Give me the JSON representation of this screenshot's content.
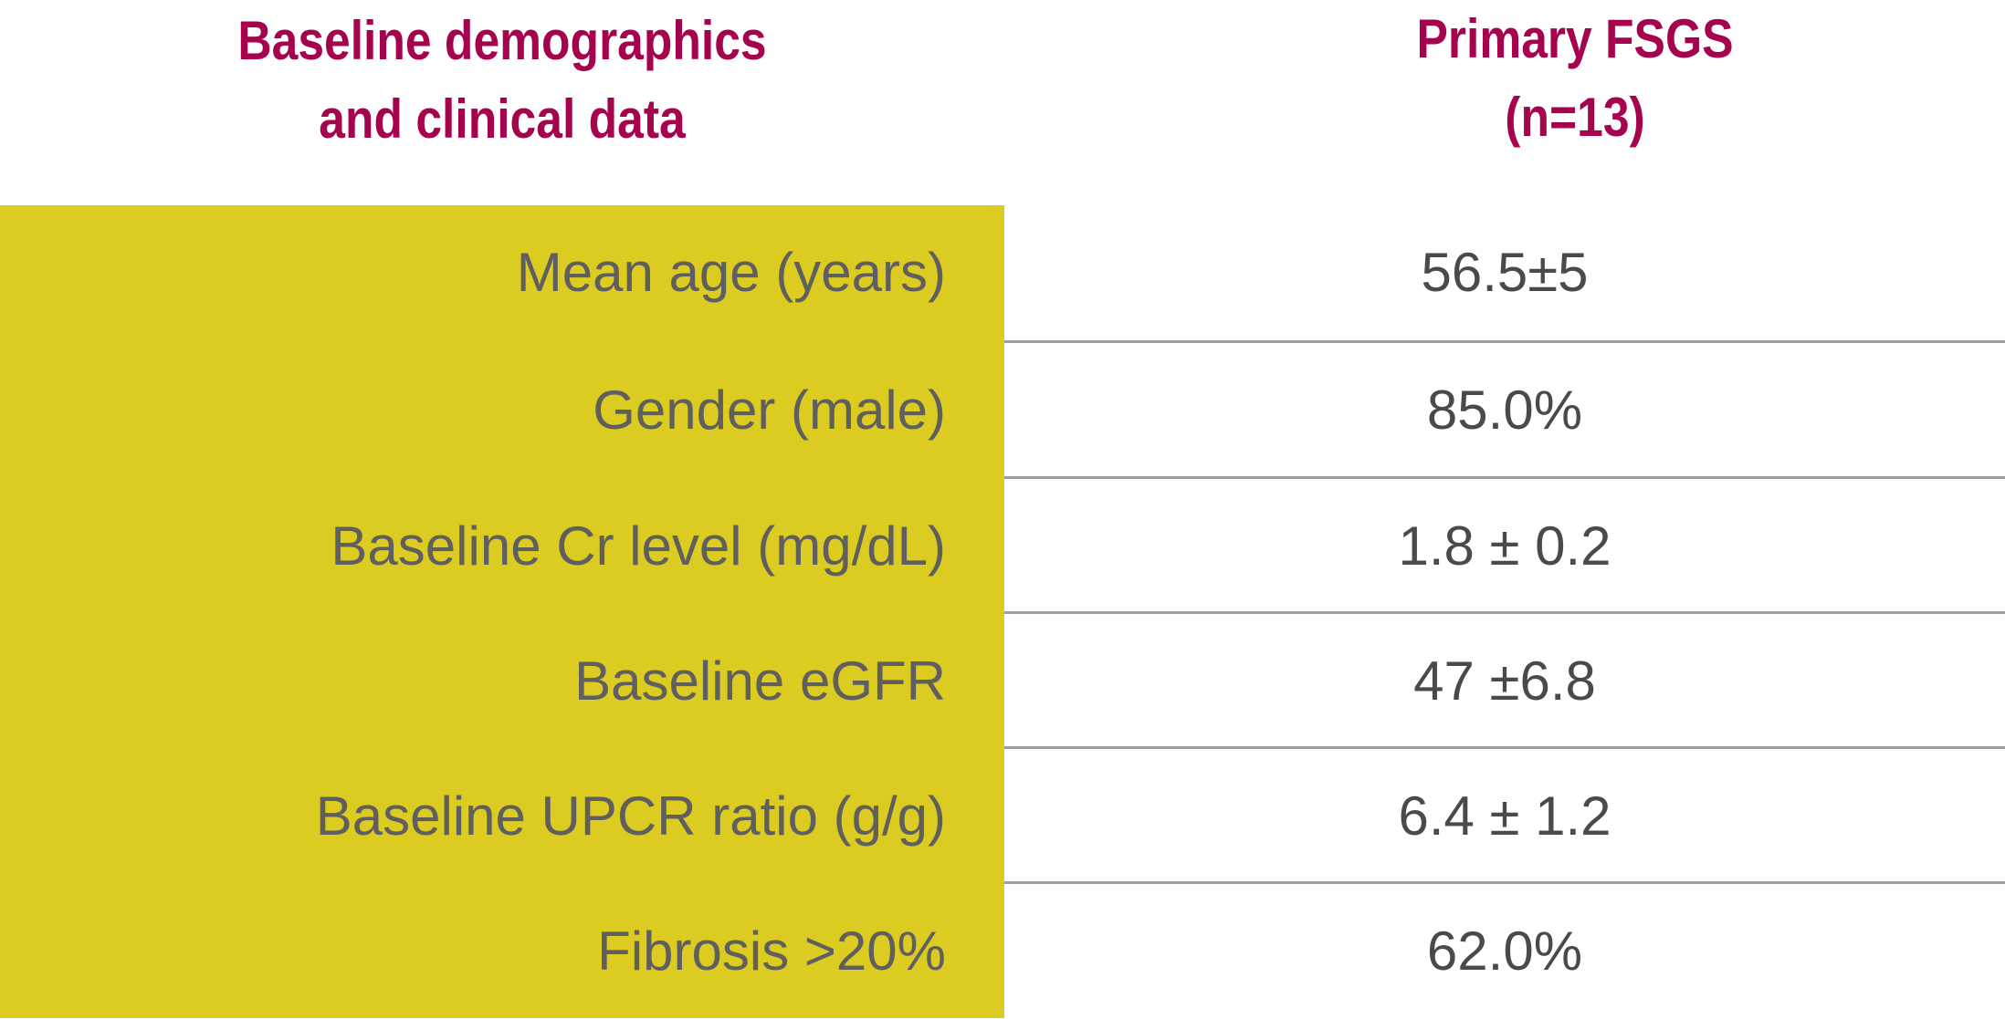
{
  "header": {
    "left_line1": "Baseline demographics",
    "left_line2": "and clinical data",
    "right_line1": "Primary FSGS",
    "right_line2": "(n=13)"
  },
  "rows": [
    {
      "label": "Mean age (years)",
      "value": "56.5±5"
    },
    {
      "label": "Gender (male)",
      "value": "85.0%"
    },
    {
      "label": "Baseline Cr level (mg/dL)",
      "value": "1.8 ± 0.2"
    },
    {
      "label": "Baseline eGFR",
      "value": "47 ±6.8"
    },
    {
      "label": "Baseline UPCR ratio (g/g)",
      "value": "6.4 ± 1.2"
    },
    {
      "label": "Fibrosis >20%",
      "value": "62.0%"
    }
  ],
  "colors": {
    "header_text": "#a5034e",
    "label_panel": "#dccb20",
    "label_text": "#5f5f5f",
    "value_text": "#4a4a4a",
    "divider": "#9e9e9e"
  }
}
